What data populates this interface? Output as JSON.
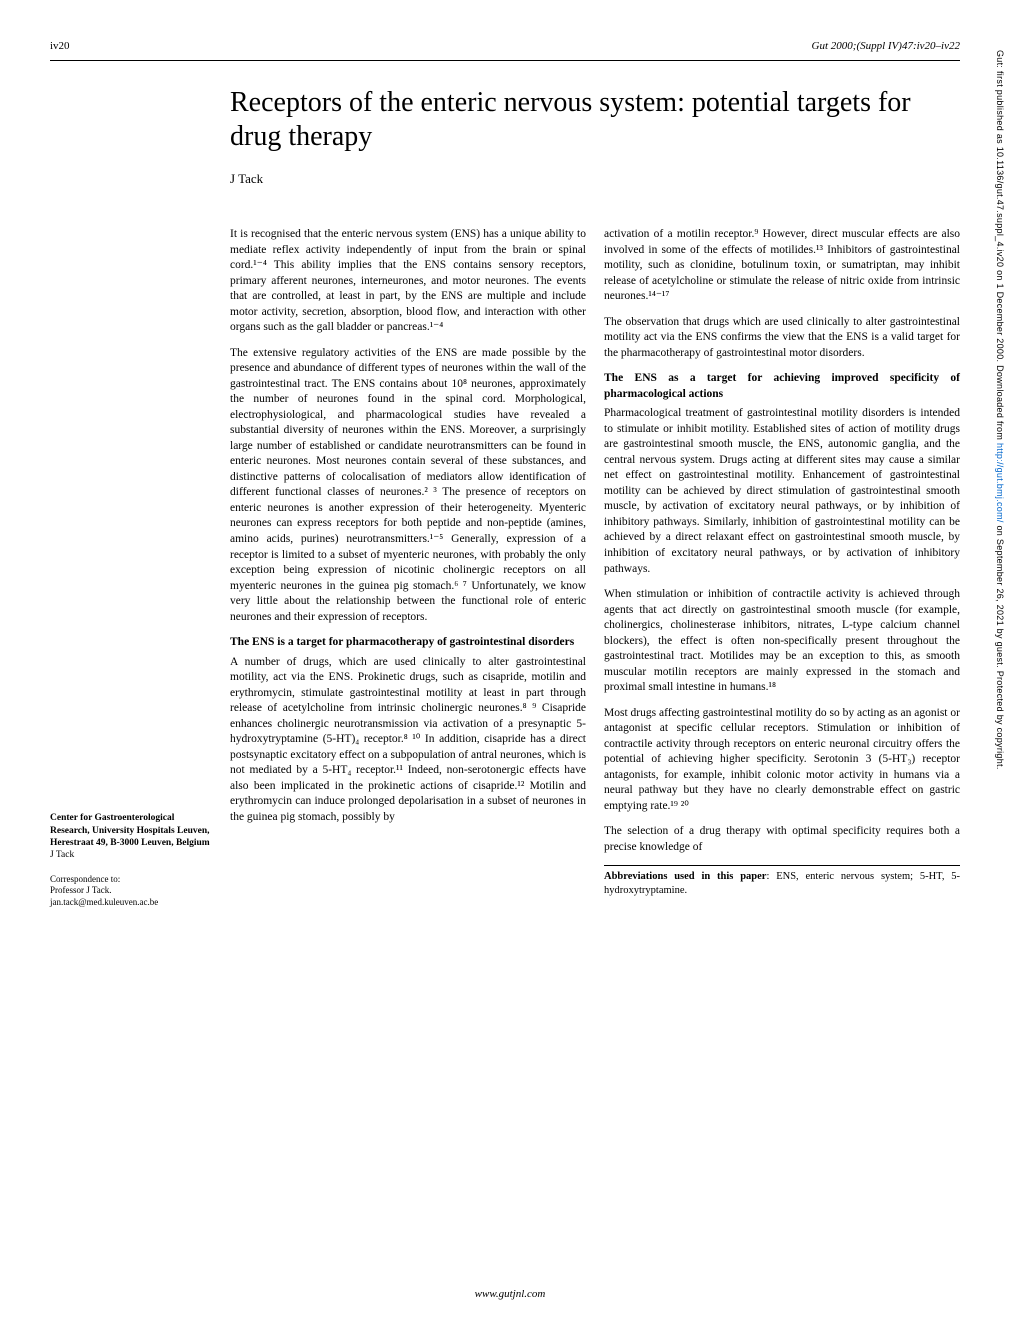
{
  "header": {
    "page_number": "iv20",
    "citation": "Gut 2000;(Suppl IV)47:iv20–iv22"
  },
  "title": "Receptors of the enteric nervous system: potential targets for drug therapy",
  "author": "J Tack",
  "affiliation": {
    "dept": "Center for Gastroenterological Research, University Hospitals Leuven, Herestraat 49, B-3000 Leuven, Belgium",
    "name": "J Tack"
  },
  "correspondence": {
    "label": "Correspondence to:",
    "name": "Professor J Tack.",
    "email": "jan.tack@med.kuleuven.ac.be"
  },
  "col1": {
    "p1": "It is recognised that the enteric nervous system (ENS) has a unique ability to mediate reflex activity independently of input from the brain or spinal cord.¹⁻⁴ This ability implies that the ENS contains sensory receptors, primary afferent neurones, interneurones, and motor neurones. The events that are controlled, at least in part, by the ENS are multiple and include motor activity, secretion, absorption, blood flow, and interaction with other organs such as the gall bladder or pancreas.¹⁻⁴",
    "p2": "The extensive regulatory activities of the ENS are made possible by the presence and abundance of different types of neurones within the wall of the gastrointestinal tract. The ENS contains about 10⁸ neurones, approximately the number of neurones found in the spinal cord. Morphological, electrophysiological, and pharmacological studies have revealed a substantial diversity of neurones within the ENS. Moreover, a surprisingly large number of established or candidate neurotransmitters can be found in enteric neurones. Most neurones contain several of these substances, and distinctive patterns of colocalisation of mediators allow identification of different functional classes of neurones.² ³ The presence of receptors on enteric neurones is another expression of their heterogeneity. Myenteric neurones can express receptors for both peptide and non-peptide (amines, amino acids, purines) neurotransmitters.¹⁻⁵ Generally, expression of a receptor is limited to a subset of myenteric neurones, with probably the only exception being expression of nicotinic cholinergic receptors on all myenteric neurones in the guinea pig stomach.⁶ ⁷ Unfortunately, we know very little about the relationship between the functional role of enteric neurones and their expression of receptors.",
    "h1": "The ENS is a target for pharmacotherapy of gastrointestinal disorders",
    "p3": "A number of drugs, which are used clinically to alter gastrointestinal motility, act via the ENS. Prokinetic drugs, such as cisapride, motilin and erythromycin, stimulate gastrointestinal motility at least in part through release of acetylcholine from intrinsic cholinergic neurones.⁸ ⁹ Cisapride enhances cholinergic neurotransmission via activation of a presynaptic 5-hydroxytryptamine (5-HT)₄ receptor.⁸ ¹⁰ In addition, cisapride has a direct postsynaptic excitatory effect on a subpopulation of antral neurones, which is not mediated by a 5-HT₄ receptor.¹¹ Indeed, non-serotonergic effects have also been implicated in the prokinetic actions of cisapride.¹² Motilin and erythromycin can induce prolonged depolarisation in a subset of neurones in the guinea pig stomach, possibly by"
  },
  "col2": {
    "p1": "activation of a motilin receptor.⁹ However, direct muscular effects are also involved in some of the effects of motilides.¹³ Inhibitors of gastrointestinal motility, such as clonidine, botulinum toxin, or sumatriptan, may inhibit release of acetylcholine or stimulate the release of nitric oxide from intrinsic neurones.¹⁴⁻¹⁷",
    "p2": "The observation that drugs which are used clinically to alter gastrointestinal motility act via the ENS confirms the view that the ENS is a valid target for the pharmacotherapy of gastrointestinal motor disorders.",
    "h1": "The ENS as a target for achieving improved specificity of pharmacological actions",
    "p3": "Pharmacological treatment of gastrointestinal motility disorders is intended to stimulate or inhibit motility. Established sites of action of motility drugs are gastrointestinal smooth muscle, the ENS, autonomic ganglia, and the central nervous system. Drugs acting at different sites may cause a similar net effect on gastrointestinal motility. Enhancement of gastrointestinal motility can be achieved by direct stimulation of gastrointestinal smooth muscle, by activation of excitatory neural pathways, or by inhibition of inhibitory pathways. Similarly, inhibition of gastrointestinal motility can be achieved by a direct relaxant effect on gastrointestinal smooth muscle, by inhibition of excitatory neural pathways, or by activation of inhibitory pathways.",
    "p4": "When stimulation or inhibition of contractile activity is achieved through agents that act directly on gastrointestinal smooth muscle (for example, cholinergics, cholinesterase inhibitors, nitrates, L-type calcium channel blockers), the effect is often non-specifically present throughout the gastrointestinal tract. Motilides may be an exception to this, as smooth muscular motilin receptors are mainly expressed in the stomach and proximal small intestine in humans.¹⁸",
    "p5": "Most drugs affecting gastrointestinal motility do so by acting as an agonist or antagonist at specific cellular receptors. Stimulation or inhibition of contractile activity through receptors on enteric neuronal circuitry offers the potential of achieving higher specificity. Serotonin 3 (5-HT₃) receptor antagonists, for example, inhibit colonic motor activity in humans via a neural pathway but they have no clearly demonstrable effect on gastric emptying rate.¹⁹ ²⁰",
    "p6": "The selection of a drug therapy with optimal specificity requires both a precise knowledge of",
    "abbrev": "Abbreviations used in this paper: ENS, enteric nervous system; 5-HT, 5-hydroxytryptamine."
  },
  "footer": "www.gutjnl.com",
  "sidebar": {
    "prefix": "Gut: first published as 10.1136/gut.47.suppl_4.iv20 on 1 December 2000. Downloaded from ",
    "link": "http://gut.bmj.com/",
    "suffix": " on September 26, 2021 by guest. Protected by copyright."
  }
}
